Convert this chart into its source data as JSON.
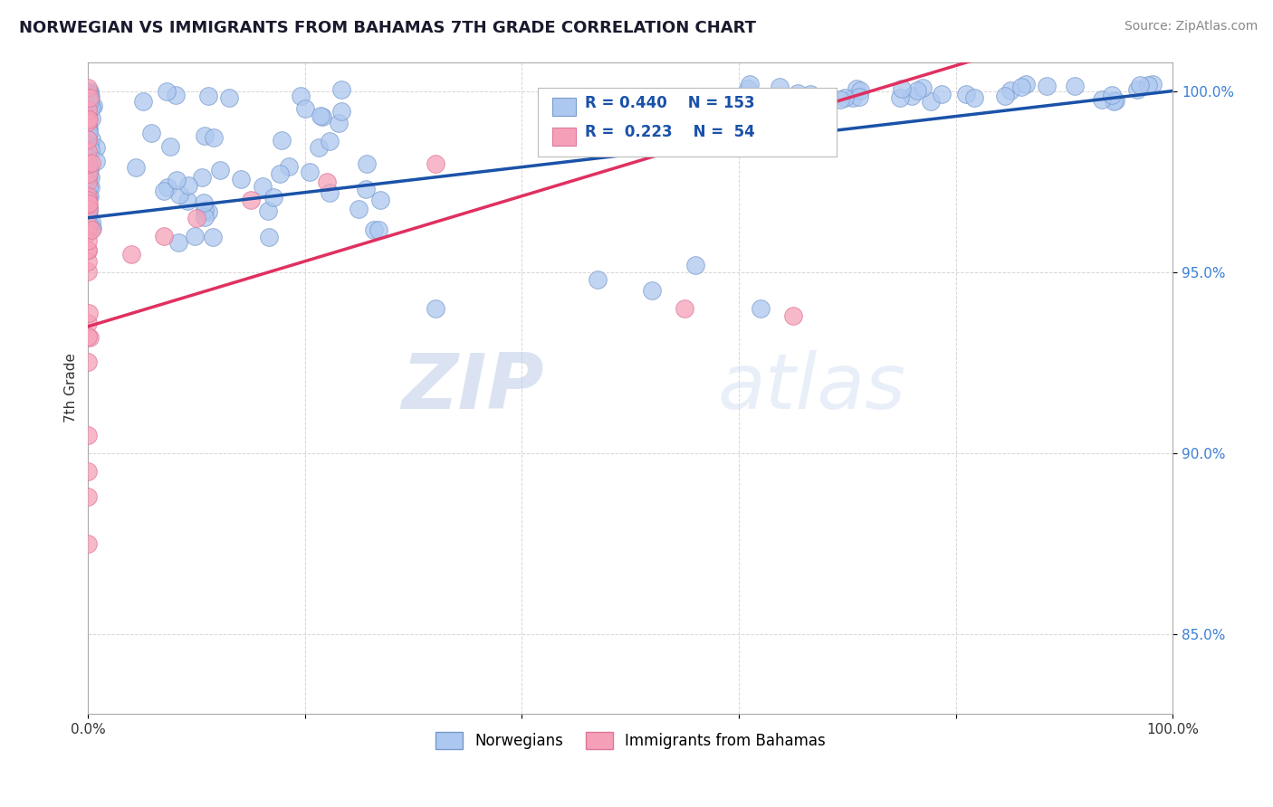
{
  "title": "NORWEGIAN VS IMMIGRANTS FROM BAHAMAS 7TH GRADE CORRELATION CHART",
  "source_text": "Source: ZipAtlas.com",
  "ylabel": "7th Grade",
  "xlim": [
    0,
    1.0
  ],
  "ylim": [
    0.828,
    1.008
  ],
  "yticks": [
    0.85,
    0.9,
    0.95,
    1.0
  ],
  "ytick_labels": [
    "85.0%",
    "90.0%",
    "95.0%",
    "100.0%"
  ],
  "norwegian_color": "#adc8f0",
  "bahamas_color": "#f5a0b8",
  "norwegian_edge": "#7799cc",
  "bahamas_edge": "#dd7799",
  "trend_blue": "#1a52a8",
  "trend_pink": "#e03060",
  "r_norwegian": 0.44,
  "n_norwegian": 153,
  "r_bahamas": 0.223,
  "n_bahamas": 54,
  "watermark_zip": "ZIP",
  "watermark_atlas": "atlas",
  "legend_norwegian": "Norwegians",
  "legend_bahamas": "Immigrants from Bahamas",
  "trend_blue_x0": 0.0,
  "trend_blue_y0": 0.965,
  "trend_blue_x1": 1.0,
  "trend_blue_y1": 1.0,
  "trend_pink_x0": 0.0,
  "trend_pink_y0": 0.935,
  "trend_pink_x1": 0.5,
  "trend_pink_y1": 0.98
}
